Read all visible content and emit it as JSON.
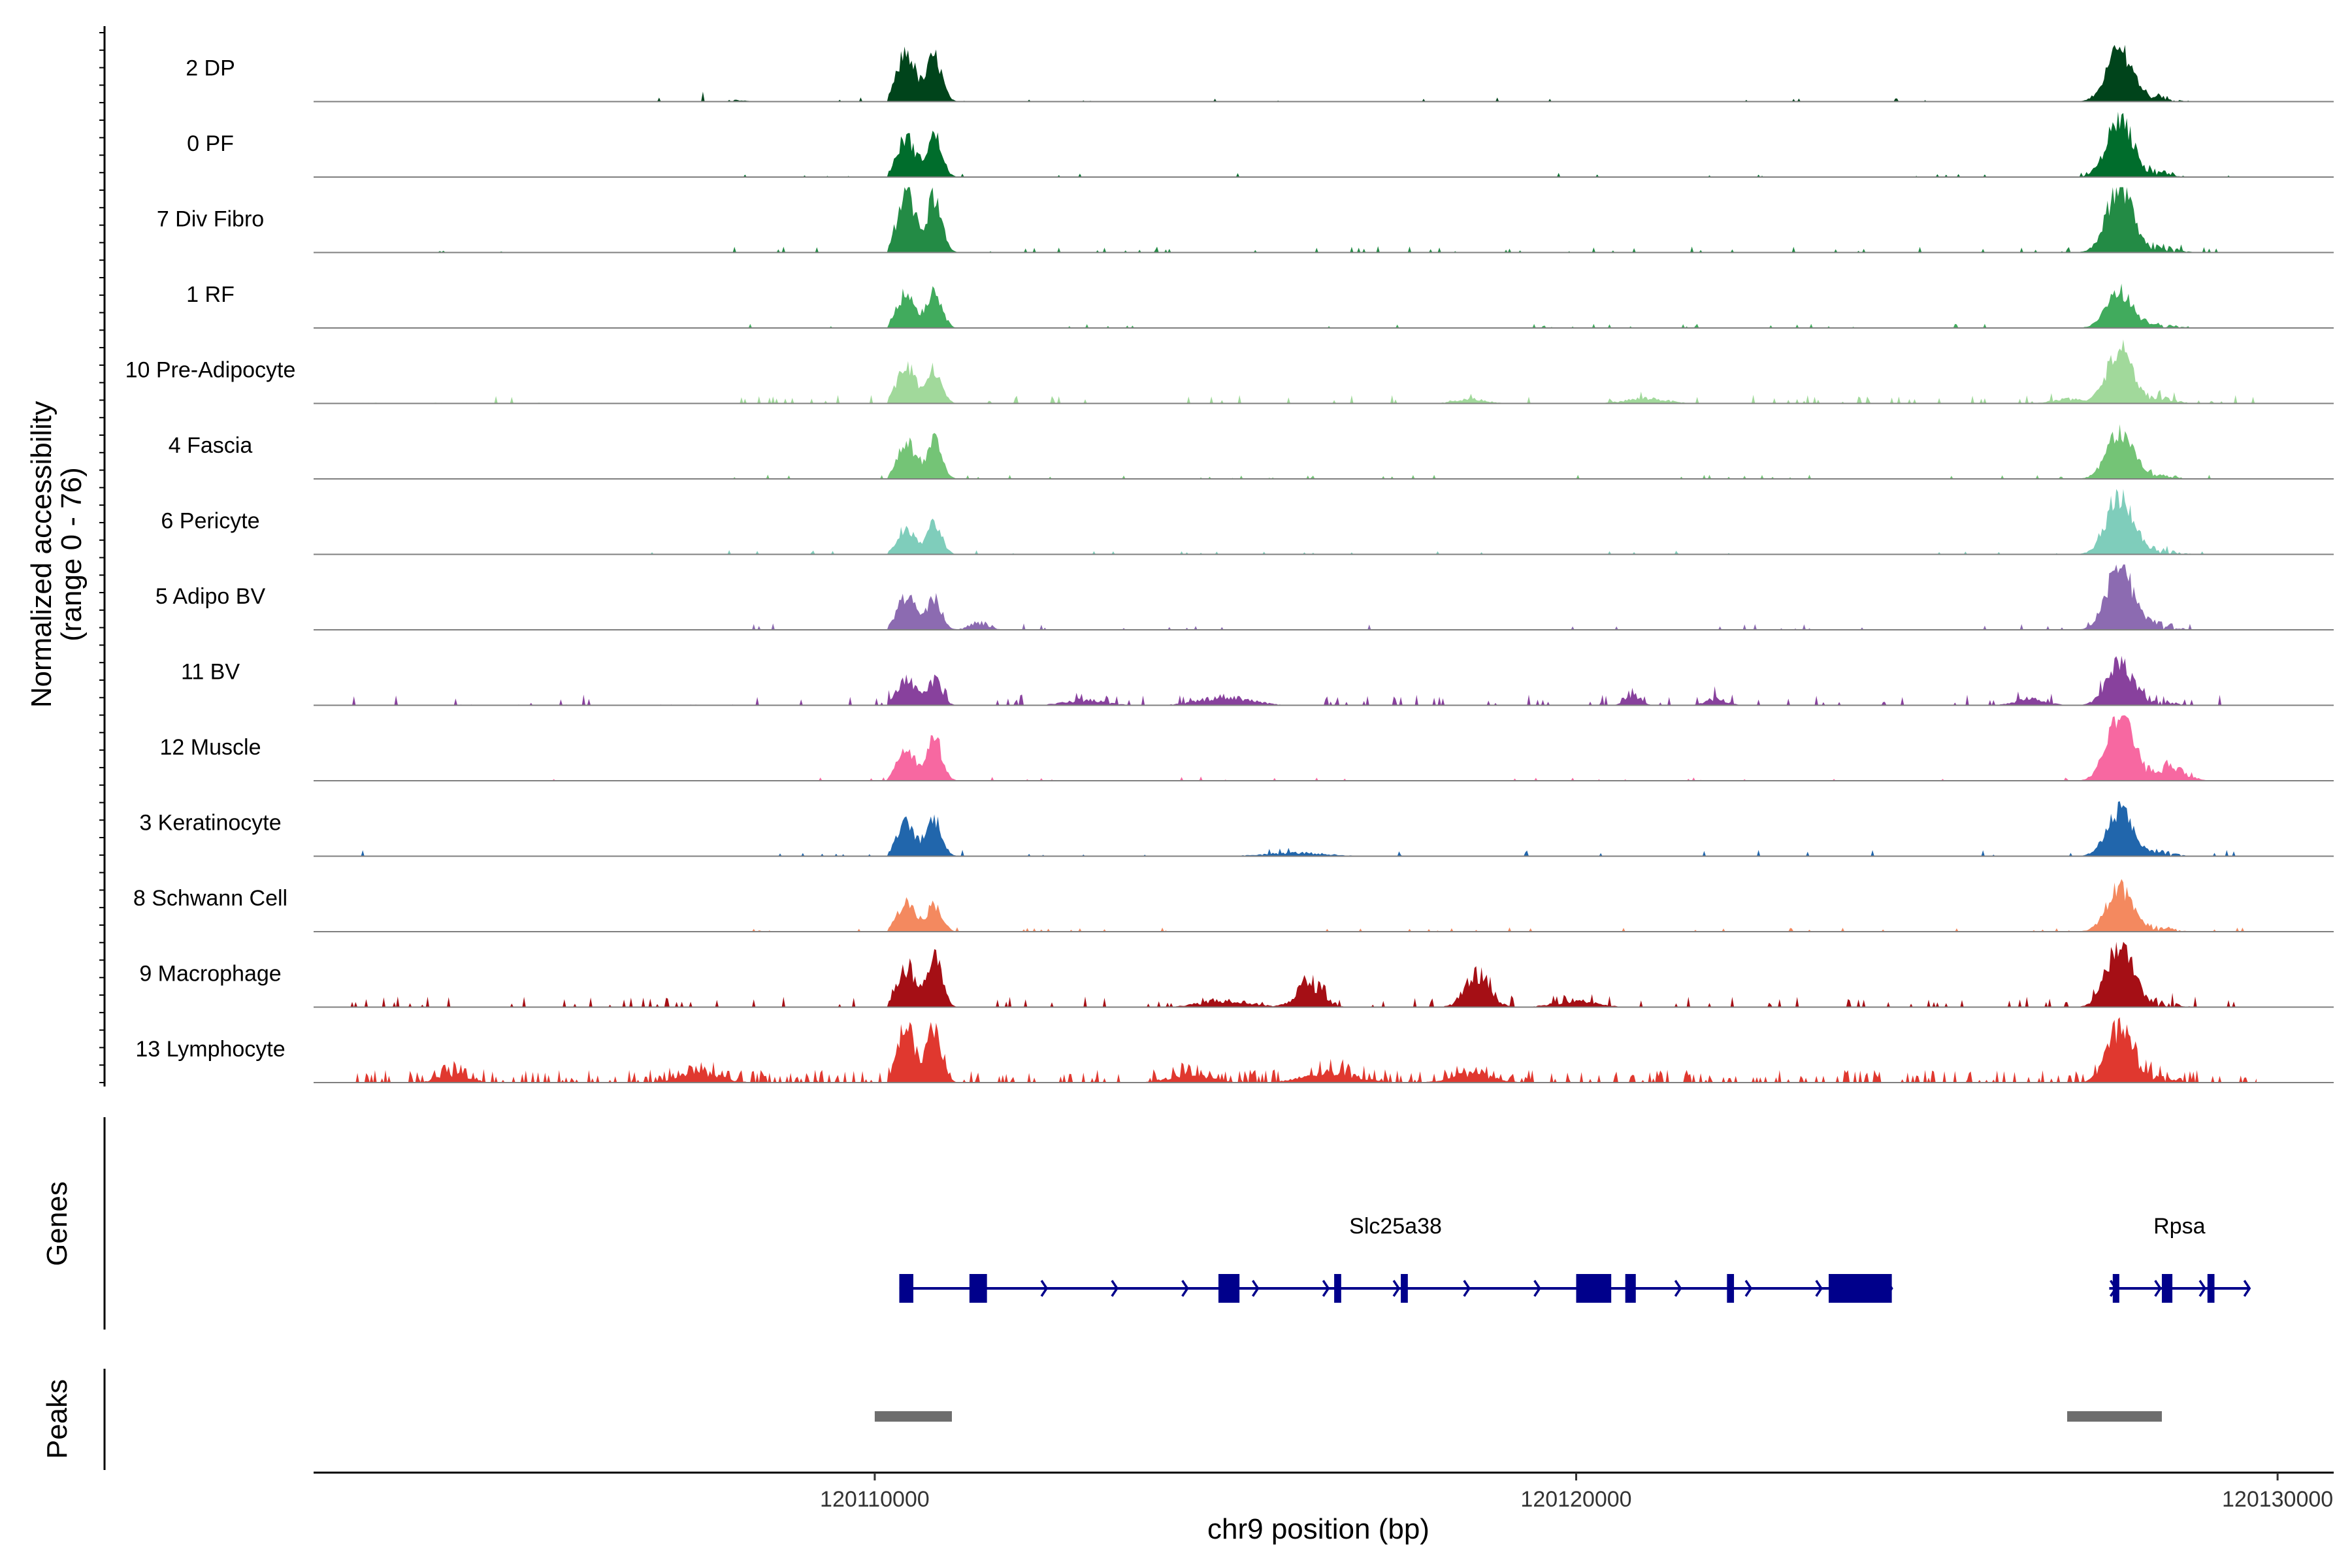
{
  "chart_data": {
    "type": "area",
    "chromosome": "chr9",
    "xlabel": "chr9 position (bp)",
    "xlim": [
      120102000,
      120130800
    ],
    "x_ticks": [
      120110000,
      120120000,
      120130000
    ],
    "x_tick_labels": [
      "120110000",
      "120120000",
      "120130000"
    ],
    "coverage_panel": {
      "ylabel": "Normalized accessibility\n(range 0 - 76)",
      "ylim": [
        0,
        76
      ]
    },
    "tracks": [
      {
        "name": "2 DP",
        "color": "#00441b",
        "peak_a": 58,
        "peak_b": 52,
        "peak_c": 62,
        "bg": 2,
        "extra": [
          [
            120107400,
            10,
            500
          ]
        ],
        "noise": 0.02
      },
      {
        "name": "0 PF",
        "color": "#006d2c",
        "peak_a": 46,
        "peak_b": 48,
        "peak_c": 68,
        "bg": 2,
        "extra": [],
        "noise": 0.02
      },
      {
        "name": "7 Div Fibro",
        "color": "#238b45",
        "peak_a": 68,
        "peak_b": 62,
        "peak_c": 76,
        "bg": 3,
        "extra": [
          [
            120103500,
            6,
            300
          ],
          [
            120105000,
            5,
            300
          ],
          [
            120106000,
            6,
            200
          ]
        ],
        "noise": 0.06
      },
      {
        "name": "1 RF",
        "color": "#41ab5d",
        "peak_a": 40,
        "peak_b": 44,
        "peak_c": 42,
        "bg": 2,
        "extra": [],
        "noise": 0.03
      },
      {
        "name": "10 Pre-Adipocyte",
        "color": "#a1d99b",
        "peak_a": 44,
        "peak_b": 40,
        "peak_c": 62,
        "bg": 4,
        "extra": [
          [
            120121000,
            6,
            400
          ],
          [
            120127000,
            5,
            300
          ],
          [
            120118500,
            5,
            300
          ]
        ],
        "noise": 0.08
      },
      {
        "name": "4 Fascia",
        "color": "#74c476",
        "peak_a": 42,
        "peak_b": 44,
        "peak_c": 55,
        "bg": 2,
        "extra": [],
        "noise": 0.03
      },
      {
        "name": "6 Pericyte",
        "color": "#7fcdbb",
        "peak_a": 28,
        "peak_b": 36,
        "peak_c": 70,
        "bg": 2,
        "extra": [],
        "noise": 0.03
      },
      {
        "name": "5 Adipo BV",
        "color": "#8c6bb1",
        "peak_a": 40,
        "peak_b": 36,
        "peak_c": 76,
        "bg": 3,
        "extra": [
          [
            120111500,
            8,
            200
          ]
        ],
        "noise": 0.03
      },
      {
        "name": "11 BV",
        "color": "#88419d",
        "peak_a": 32,
        "peak_b": 28,
        "peak_c": 48,
        "bg": 5,
        "extra": [
          [
            120115000,
            10,
            500
          ],
          [
            120113000,
            6,
            400
          ],
          [
            120120800,
            14,
            150
          ],
          [
            120122000,
            8,
            200
          ],
          [
            120126500,
            8,
            300
          ],
          [
            120130000,
            18,
            150
          ]
        ],
        "noise": 0.1
      },
      {
        "name": "12 Muscle",
        "color": "#f768a1",
        "peak_a": 36,
        "peak_b": 50,
        "peak_c": 76,
        "bg": 2,
        "extra": [
          [
            120128500,
            12,
            300
          ]
        ],
        "noise": 0.04
      },
      {
        "name": "3 Keratinocyte",
        "color": "#2166ac",
        "peak_a": 38,
        "peak_b": 44,
        "peak_c": 52,
        "bg": 3,
        "extra": [
          [
            120116000,
            4,
            600
          ]
        ],
        "noise": 0.04
      },
      {
        "name": "8 Schwann Cell",
        "color": "#f4895f",
        "peak_a": 34,
        "peak_b": 32,
        "peak_c": 50,
        "bg": 2,
        "extra": [],
        "noise": 0.03
      },
      {
        "name": "9 Macrophage",
        "color": "#a50f15",
        "peak_a": 44,
        "peak_b": 60,
        "peak_c": 76,
        "bg": 5,
        "extra": [
          [
            120116200,
            30,
            250
          ],
          [
            120118600,
            36,
            250
          ],
          [
            120115000,
            8,
            500
          ],
          [
            120120000,
            8,
            400
          ],
          [
            120130000,
            12,
            150
          ]
        ],
        "noise": 0.1
      },
      {
        "name": "13 Lymphocyte",
        "color": "#e0382f",
        "peak_a": 60,
        "peak_b": 62,
        "peak_c": 62,
        "bg": 6,
        "extra": [
          [
            120104000,
            10,
            300
          ],
          [
            120107500,
            12,
            400
          ],
          [
            120114500,
            10,
            400
          ],
          [
            120116500,
            12,
            500
          ],
          [
            120118500,
            10,
            400
          ]
        ],
        "noise": 0.3
      }
    ],
    "genes_panel": {
      "ylabel": "Genes",
      "color": "#00008b",
      "genes": [
        {
          "name": "Slc25a38",
          "start": 120110350,
          "end": 120124500,
          "exons": [
            [
              120110350,
              120110550
            ],
            [
              120111350,
              120111600
            ],
            [
              120114900,
              120115200
            ],
            [
              120116550,
              120116650
            ],
            [
              120117500,
              120117600
            ],
            [
              120120000,
              120120500
            ],
            [
              120120700,
              120120850
            ],
            [
              120122150,
              120122250
            ],
            [
              120123600,
              120124500
            ]
          ]
        },
        {
          "name": "Rpsa",
          "start": 120127600,
          "end": 120129600,
          "exons": [
            [
              120127650,
              120127720
            ],
            [
              120128350,
              120128500
            ],
            [
              120129000,
              120129100
            ]
          ]
        }
      ]
    },
    "peaks_panel": {
      "ylabel": "Peaks",
      "color": "#6e6e6e",
      "peaks": [
        [
          120110000,
          120111100
        ],
        [
          120127000,
          120128350
        ]
      ]
    }
  }
}
